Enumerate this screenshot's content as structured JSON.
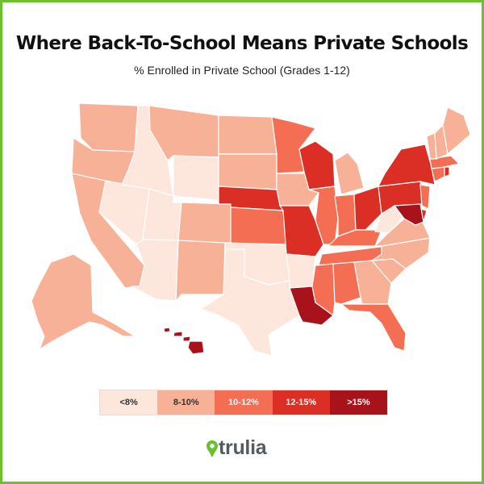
{
  "title": "Where Back-To-School Means Private Schools",
  "subtitle": "% Enrolled in Private School (Grades 1-12)",
  "legend": {
    "items": [
      {
        "label": "<8%",
        "color": "#fde7dc",
        "text_color": "#333333"
      },
      {
        "label": "8-10%",
        "color": "#f6b197",
        "text_color": "#333333"
      },
      {
        "label": "10-12%",
        "color": "#f36e52",
        "text_color": "#ffffff"
      },
      {
        "label": "12-15%",
        "color": "#db2f26",
        "text_color": "#ffffff"
      },
      {
        "label": ">15%",
        "color": "#a8131b",
        "text_color": "#ffffff"
      }
    ]
  },
  "brand": {
    "name": "trulia",
    "icon": "map-pin-icon",
    "color": "#6cc02b"
  },
  "chart_data": {
    "type": "choropleth",
    "title": "Where Back-To-School Means Private Schools",
    "subtitle": "% Enrolled in Private School (Grades 1-12)",
    "bins": [
      "<8%",
      "8-10%",
      "10-12%",
      "12-15%",
      ">15%"
    ],
    "states": {
      "WA": "8-10%",
      "OR": "8-10%",
      "CA": "8-10%",
      "NV": "<8%",
      "ID": "<8%",
      "MT": "8-10%",
      "WY": "<8%",
      "UT": "<8%",
      "AZ": "<8%",
      "CO": "8-10%",
      "NM": "8-10%",
      "ND": "8-10%",
      "SD": "8-10%",
      "NE": "12-15%",
      "KS": "10-12%",
      "OK": "<8%",
      "TX": "<8%",
      "MN": "10-12%",
      "IA": "8-10%",
      "MO": "12-15%",
      "AR": "<8%",
      "LA": ">15%",
      "WI": "12-15%",
      "IL": "10-12%",
      "MI": "8-10%",
      "IN": "10-12%",
      "OH": "12-15%",
      "KY": "10-12%",
      "TN": "10-12%",
      "MS": "10-12%",
      "AL": "10-12%",
      "GA": "8-10%",
      "FL": "10-12%",
      "SC": "8-10%",
      "NC": "8-10%",
      "VA": "8-10%",
      "WV": "<8%",
      "PA": "12-15%",
      "NY": "12-15%",
      "NJ": "10-12%",
      "DE": "12-15%",
      "MD": ">15%",
      "CT": "10-12%",
      "RI": "12-15%",
      "MA": "10-12%",
      "VT": "8-10%",
      "NH": "8-10%",
      "ME": "8-10%",
      "AK": "8-10%",
      "HI": ">15%"
    }
  }
}
